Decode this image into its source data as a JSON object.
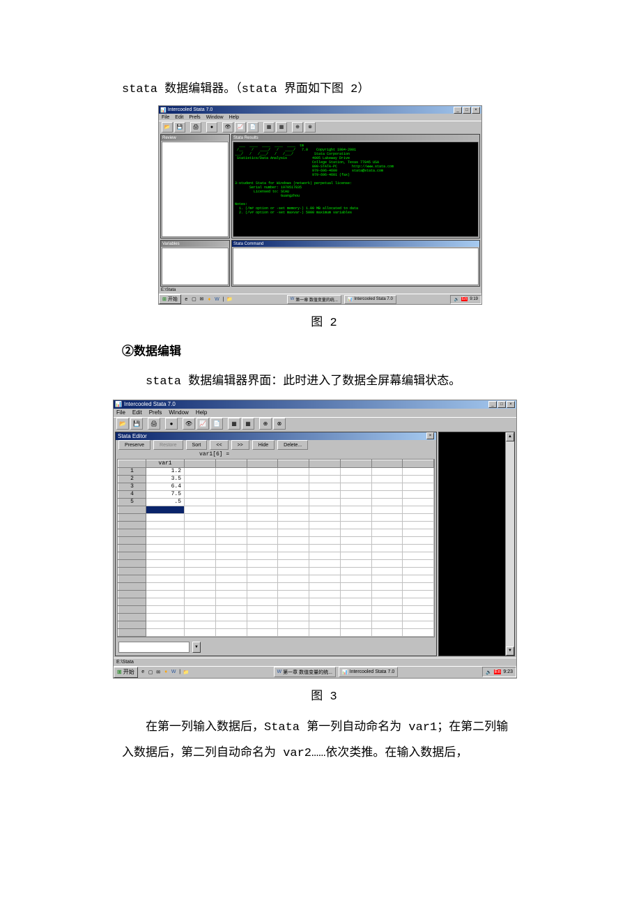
{
  "line1": "stata 数据编辑器。（stata 界面如下图 2）",
  "captions": {
    "fig2": "图 2",
    "fig3": "图 3"
  },
  "section2": "②数据编辑",
  "line_editor_intro": "stata 数据编辑器界面：此时进入了数据全屏幕编辑状态。",
  "para_after_fig3_a": "在第一列输入数据后，Stata 第一列自动命名为 var1；在第二列输",
  "para_after_fig3_b": "入数据后，第二列自动命名为 var2……依次类推。在输入数据后，",
  "app": {
    "title": "Intercooled Stata 7.0",
    "menus": [
      "File",
      "Edit",
      "Prefs",
      "Window",
      "Help"
    ],
    "results_text": "  ___  ____  ____  ____  ____  tm\n /__    /   ____/   /   ____/   7.0    Copyright 1984-2001\n___/   /   /___/   /   /___/          Stata Corporation\n Statistics/Data Analysis            4905 Lakeway Drive\n                                     College Station, Texas 77845 USA\n                                     800-STATA-PC       http://www.stata.com\n                                     979-696-4600       stata@stata.com\n                                     979-696-4601 (fax)\n\n3-student Stata for Windows (network) perpetual license:\n       Serial number: 1970517835\n         Licensed to: SCAU\n                      Guangzhou\n\nNotes:\n  1. (/m# option or -set memory-) 1.00 MB allocated to data\n  2. (/v# option or -set maxvar-) 5000 maximum variables",
    "review_title": "Review",
    "variables_title": "Variables",
    "results_title": "Stata Results",
    "command_title": "Stata Command",
    "editor_title": "Stata Editor",
    "editor_buttons": [
      "Preserve",
      "Restore",
      "Sort",
      "<<",
      ">>",
      "Hide",
      "Delete..."
    ],
    "infobar": "var1[6] =",
    "col_header": "var1",
    "rows": [
      {
        "n": "1",
        "v": "1.2"
      },
      {
        "n": "2",
        "v": "3.5"
      },
      {
        "n": "3",
        "v": "6.4"
      },
      {
        "n": "4",
        "v": "7.5"
      },
      {
        "n": "5",
        "v": ".5"
      }
    ],
    "status3": "E:\\Stata",
    "taskbar": {
      "start": "开始",
      "task1": "第一章  数值变量的统...",
      "task2": "Intercooled Stata 7.0",
      "time2": "9:19",
      "time3": "9:23"
    }
  }
}
